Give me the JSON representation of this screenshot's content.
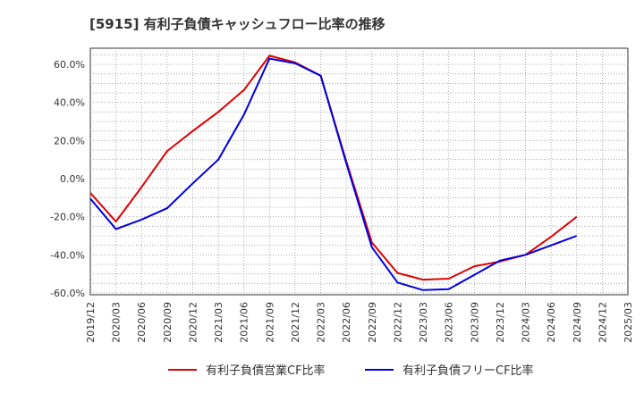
{
  "header": {
    "title": "[5915]  有利子負債キャッシュフロー比率の推移"
  },
  "chart_data": {
    "type": "line",
    "title": "[5915]  有利子負債キャッシュフロー比率の推移",
    "xlabel": "",
    "ylabel": "",
    "categories": [
      "2019/12",
      "2020/03",
      "2020/06",
      "2020/09",
      "2020/12",
      "2021/03",
      "2021/06",
      "2021/09",
      "2021/12",
      "2022/03",
      "2022/06",
      "2022/09",
      "2022/12",
      "2023/03",
      "2023/06",
      "2023/09",
      "2023/12",
      "2024/03",
      "2024/06",
      "2024/09",
      "2024/12",
      "2025/03"
    ],
    "y_ticks": [
      "60.0%",
      "40.0%",
      "20.0%",
      "0.0%",
      "-20.0%",
      "-40.0%",
      "-60.0%"
    ],
    "ylim": [
      -60,
      70
    ],
    "grid": true,
    "legend_position": "bottom",
    "series": [
      {
        "name": "有利子負債営業CF比率",
        "color": "#e00000",
        "values": [
          -7.5,
          -22.5,
          -4.5,
          14.5,
          25,
          35,
          46.5,
          64.5,
          61,
          54,
          9,
          -33.5,
          -49.5,
          -53,
          -52.5,
          -46,
          -43.5,
          -40,
          -30.5,
          -20,
          null,
          null
        ]
      },
      {
        "name": "有利子負債フリーCF比率",
        "color": "#0000e0",
        "values": [
          -10.5,
          -26.5,
          -21.5,
          -15.5,
          -2.5,
          10,
          33.5,
          63,
          60.5,
          54,
          8,
          -36,
          -54.5,
          -58.5,
          -58,
          -50.5,
          -43,
          -40,
          -35,
          -30,
          null,
          null
        ]
      }
    ]
  }
}
